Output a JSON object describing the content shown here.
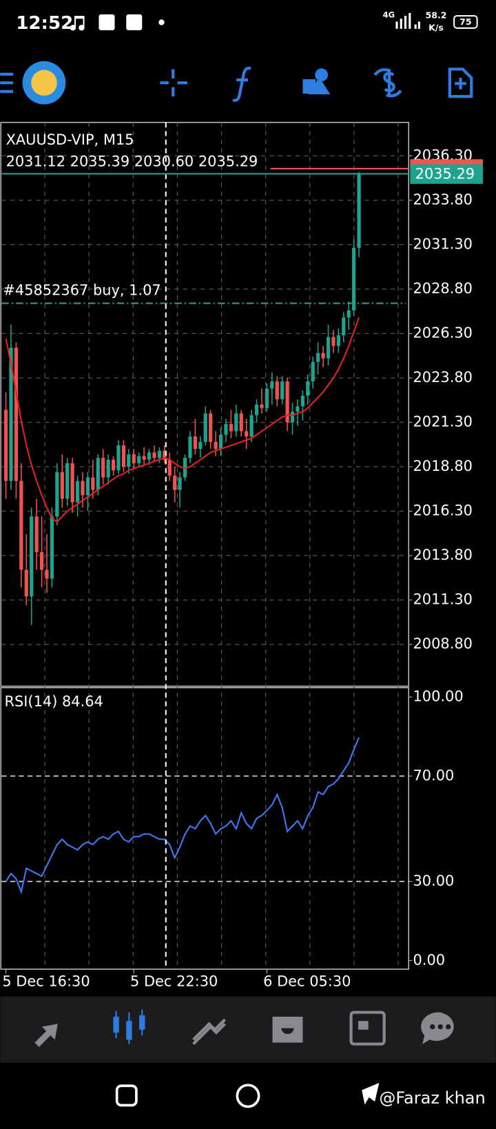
{
  "status_bar": {
    "time": "12:52",
    "network": "4G",
    "speed": "58.2",
    "speed_unit": "K/s",
    "battery": "75"
  },
  "chart_data": {
    "type": "candlestick",
    "title": "XAUUSD-VIP, M15",
    "subtitle": "2031.12 2035.39 2030.60 2035.29",
    "order_label": "#45852367 buy, 1.07",
    "order_price": 2028.0,
    "ask_price": 2035.58,
    "last_price": 2035.29,
    "up_color": "#1fa38e",
    "down_color": "#ef5350",
    "ma_color": "#e52222",
    "ohlc": [
      [
        2022,
        2023,
        2017,
        2018
      ],
      [
        2018,
        2026.8,
        2017.5,
        2025.5
      ],
      [
        2025.5,
        2025.8,
        2017,
        2018
      ],
      [
        2018,
        2019,
        2012,
        2013
      ],
      [
        2013,
        2015,
        2011,
        2011.5
      ],
      [
        2011.5,
        2016.5,
        2009.9,
        2016
      ],
      [
        2016,
        2017,
        2013,
        2014
      ],
      [
        2014,
        2016,
        2012,
        2013
      ],
      [
        2013,
        2015,
        2011.7,
        2012.5
      ],
      [
        2012.5,
        2016.5,
        2012,
        2016
      ],
      [
        2016,
        2019,
        2015.5,
        2018.5
      ],
      [
        2018.5,
        2019.5,
        2016.5,
        2017
      ],
      [
        2017,
        2019.3,
        2016.6,
        2019
      ],
      [
        2019,
        2019.3,
        2016.2,
        2016.8
      ],
      [
        2016.8,
        2018.3,
        2016,
        2018
      ],
      [
        2018,
        2018.5,
        2016.5,
        2017.2
      ],
      [
        2017.2,
        2018.5,
        2016.3,
        2018.2
      ],
      [
        2018.2,
        2019.2,
        2017,
        2017.5
      ],
      [
        2017.5,
        2019.5,
        2017.2,
        2019.3
      ],
      [
        2019.3,
        2019.8,
        2017.8,
        2018.2
      ],
      [
        2018.2,
        2019.5,
        2017.8,
        2019.2
      ],
      [
        2019.2,
        2019.4,
        2018.3,
        2018.6
      ],
      [
        2018.6,
        2020.3,
        2018.4,
        2020
      ],
      [
        2020,
        2020.3,
        2018.5,
        2018.8
      ],
      [
        2018.8,
        2019.8,
        2018.4,
        2019.5
      ],
      [
        2019.5,
        2019.8,
        2018.7,
        2019
      ],
      [
        2019,
        2019.6,
        2018.8,
        2019.4
      ],
      [
        2019.4,
        2019.9,
        2018.9,
        2019.2
      ],
      [
        2019.2,
        2019.8,
        2018.9,
        2019.6
      ],
      [
        2019.6,
        2020,
        2019.1,
        2019.3
      ],
      [
        2019.3,
        2019.9,
        2019,
        2019.7
      ],
      [
        2019.7,
        2020,
        2019,
        2019.2
      ],
      [
        2019.2,
        2019.6,
        2018,
        2018.3
      ],
      [
        2018.3,
        2018.8,
        2016.8,
        2017.5
      ],
      [
        2017.5,
        2018.5,
        2016.5,
        2018.2
      ],
      [
        2018.2,
        2019.5,
        2018,
        2019.3
      ],
      [
        2019.3,
        2020.8,
        2019,
        2020.5
      ],
      [
        2020.5,
        2021.5,
        2019.5,
        2019.8
      ],
      [
        2019.8,
        2020.5,
        2019.3,
        2020.2
      ],
      [
        2020.2,
        2022.2,
        2020,
        2021.8
      ],
      [
        2021.8,
        2022,
        2019.8,
        2020.2
      ],
      [
        2020.2,
        2020.8,
        2019.4,
        2019.8
      ],
      [
        2019.8,
        2021,
        2019.4,
        2020.6
      ],
      [
        2020.6,
        2021.5,
        2020.2,
        2021.2
      ],
      [
        2021.2,
        2022,
        2020.4,
        2020.8
      ],
      [
        2020.8,
        2022.3,
        2020.5,
        2021.8
      ],
      [
        2021.8,
        2022,
        2020.5,
        2020.8
      ],
      [
        2020.8,
        2021.5,
        2019.8,
        2020.5
      ],
      [
        2020.5,
        2022,
        2020.2,
        2021.7
      ],
      [
        2021.7,
        2022.6,
        2021.3,
        2022.3
      ],
      [
        2022.3,
        2023.2,
        2021.8,
        2022.1
      ],
      [
        2022.1,
        2023.5,
        2021.9,
        2023.2
      ],
      [
        2023.2,
        2024.1,
        2022.3,
        2023.6
      ],
      [
        2023.6,
        2023.9,
        2022.2,
        2022.6
      ],
      [
        2022.6,
        2023.9,
        2022.3,
        2023.6
      ],
      [
        2023.6,
        2023.8,
        2020.8,
        2021.3
      ],
      [
        2021.3,
        2022.4,
        2020.6,
        2021.9
      ],
      [
        2021.9,
        2022.6,
        2021.1,
        2022.2
      ],
      [
        2022.2,
        2023.1,
        2021.4,
        2022.8
      ],
      [
        2022.8,
        2024,
        2022.3,
        2023.6
      ],
      [
        2023.6,
        2025,
        2023.2,
        2024.7
      ],
      [
        2024.7,
        2025.8,
        2024,
        2025.2
      ],
      [
        2025.2,
        2025.6,
        2024.4,
        2024.9
      ],
      [
        2024.9,
        2026.8,
        2024.5,
        2026.1
      ],
      [
        2026.1,
        2026.5,
        2025.2,
        2025.6
      ],
      [
        2025.6,
        2026.6,
        2025.2,
        2026.2
      ],
      [
        2026.2,
        2027.5,
        2025.8,
        2027.2
      ],
      [
        2027.2,
        2028.1,
        2026.5,
        2027.6
      ],
      [
        2027.6,
        2031.6,
        2027.3,
        2031.12
      ],
      [
        2031.12,
        2035.39,
        2030.6,
        2035.29
      ]
    ],
    "ma": [
      2026.0,
      2024.6,
      2023.0,
      2021.4,
      2020.0,
      2018.9,
      2018.0,
      2017.2,
      2016.5,
      2015.9,
      2015.7,
      2016.0,
      2016.3,
      2016.5,
      2016.7,
      2016.9,
      2017.1,
      2017.3,
      2017.5,
      2017.7,
      2017.9,
      2018.1,
      2018.3,
      2018.4,
      2018.6,
      2018.7,
      2018.8,
      2018.9,
      2019.0,
      2019.1,
      2019.2,
      2019.3,
      2019.2,
      2019.0,
      2018.8,
      2018.7,
      2018.8,
      2019.0,
      2019.2,
      2019.4,
      2019.6,
      2019.7,
      2019.8,
      2019.9,
      2020.0,
      2020.1,
      2020.2,
      2020.3,
      2020.4,
      2020.6,
      2020.8,
      2021.0,
      2021.2,
      2021.4,
      2021.6,
      2021.7,
      2021.7,
      2021.8,
      2021.9,
      2022.1,
      2022.4,
      2022.7,
      2023.0,
      2023.4,
      2023.8,
      2024.3,
      2024.9,
      2025.6,
      2026.4,
      2027.2
    ],
    "ylim": [
      2006.45,
      2038.18
    ],
    "yticks": [
      {
        "value": 2036.3,
        "label": "2036.30"
      },
      {
        "value": 2033.8,
        "label": "2033.80"
      },
      {
        "value": 2031.3,
        "label": "2031.30"
      },
      {
        "value": 2028.8,
        "label": "2028.80"
      },
      {
        "value": 2026.3,
        "label": "2026.30"
      },
      {
        "value": 2023.8,
        "label": "2023.80"
      },
      {
        "value": 2021.3,
        "label": "2021.30"
      },
      {
        "value": 2018.8,
        "label": "2018.80"
      },
      {
        "value": 2016.3,
        "label": "2016.30"
      },
      {
        "value": 2013.8,
        "label": "2013.80"
      },
      {
        "value": 2011.3,
        "label": "2011.30"
      },
      {
        "value": 2008.8,
        "label": "2008.80"
      }
    ],
    "xticks": [
      {
        "value": 0,
        "label": "5 Dec 16:30"
      },
      {
        "value": 25,
        "label": "5 Dec 22:30"
      },
      {
        "value": 51,
        "label": "6 Dec 05:30"
      }
    ],
    "grid": true,
    "rsi": {
      "title": "RSI(14) 84.64",
      "color": "#3d7bf5",
      "values": [
        30,
        33,
        31,
        26,
        35,
        34,
        33,
        32,
        36,
        40,
        44,
        46,
        44,
        43,
        42,
        44,
        45,
        44,
        46,
        47,
        46,
        48,
        49,
        46,
        45,
        47,
        47,
        48,
        48,
        47,
        46,
        46,
        44,
        39,
        43,
        48,
        51,
        50,
        53,
        55,
        52,
        48,
        50,
        51,
        53,
        50,
        56,
        52,
        50,
        54,
        55,
        57,
        59,
        63,
        58,
        49,
        51,
        53,
        50,
        55,
        58,
        64,
        63,
        66,
        67,
        69,
        72,
        75,
        80,
        84.64
      ],
      "ylim": [
        0,
        100
      ],
      "yticks": [
        {
          "value": 100,
          "label": "100.00"
        },
        {
          "value": 70,
          "label": "70.00"
        },
        {
          "value": 30,
          "label": "30.00"
        },
        {
          "value": 0,
          "label": "0.00"
        }
      ]
    }
  },
  "watermark": "@Faraz khan"
}
